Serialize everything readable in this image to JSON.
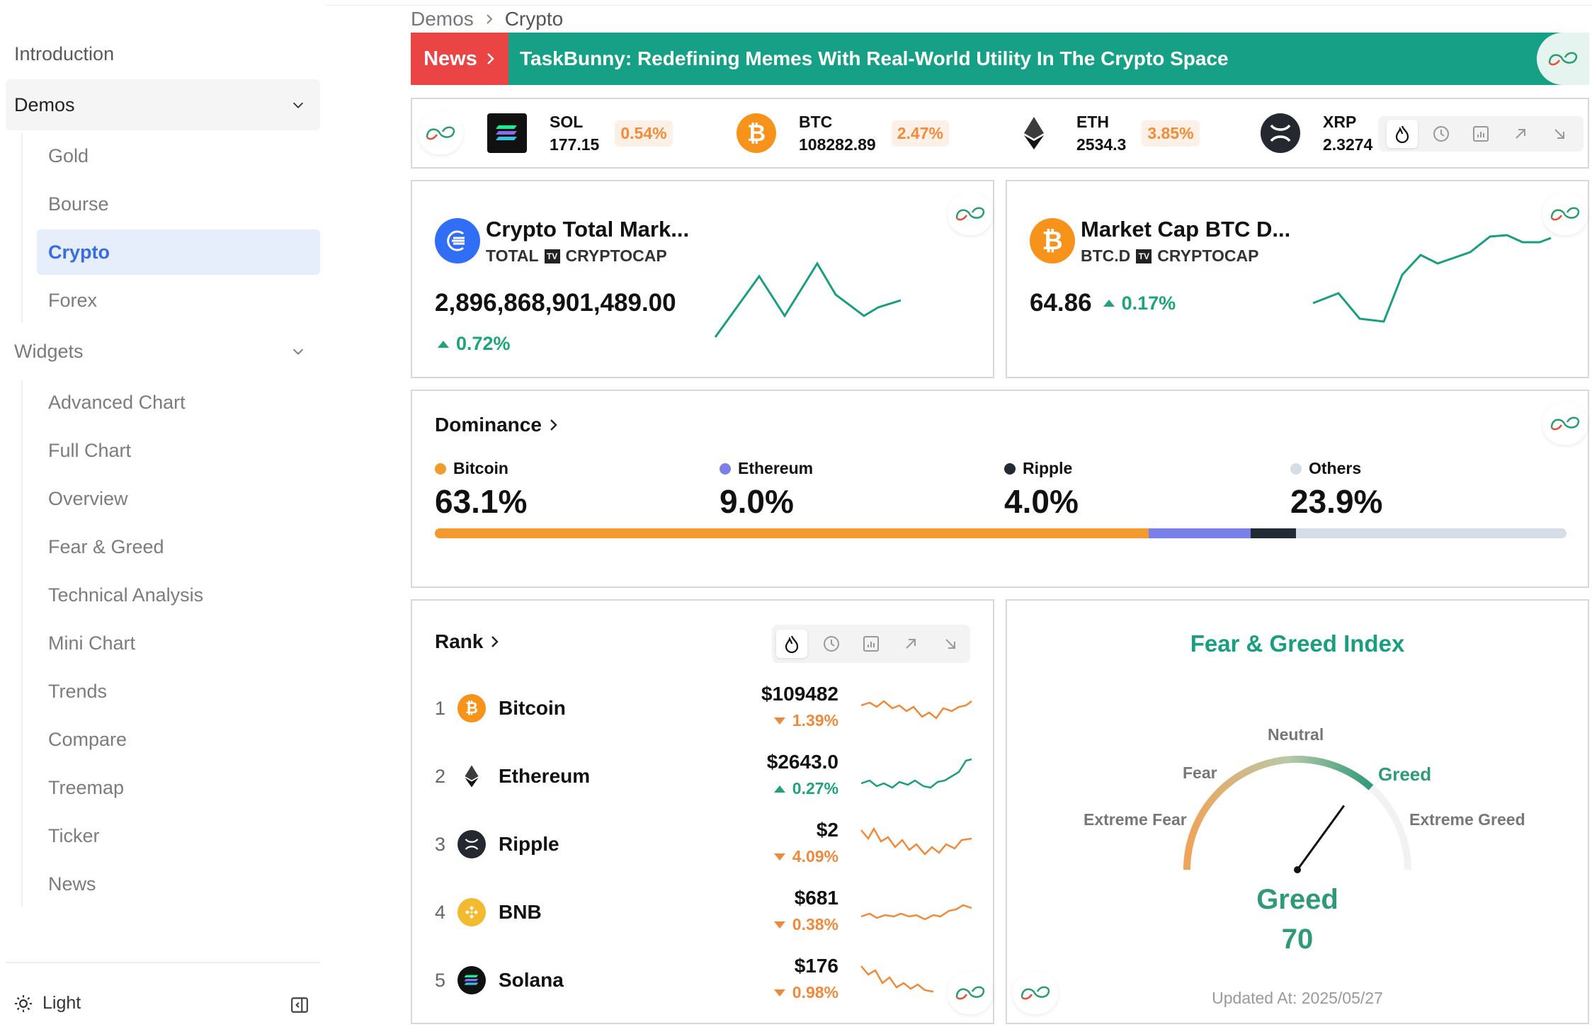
{
  "sidebar": {
    "intro": "Introduction",
    "demos": {
      "label": "Demos",
      "items": [
        "Gold",
        "Bourse",
        "Crypto",
        "Forex"
      ],
      "active": "Crypto"
    },
    "widgets": {
      "label": "Widgets",
      "items": [
        "Advanced Chart",
        "Full Chart",
        "Overview",
        "Fear & Greed",
        "Technical Analysis",
        "Mini Chart",
        "Trends",
        "Compare",
        "Treemap",
        "Ticker",
        "News"
      ]
    },
    "theme": "Light"
  },
  "breadcrumb": {
    "parent": "Demos",
    "current": "Crypto"
  },
  "news": {
    "tag": "News",
    "headline": "TaskBunny: Redefining Memes With Real-World Utility In The Crypto Space"
  },
  "ticker": [
    {
      "symbol": "SOL",
      "price": "177.15",
      "change": "0.54%"
    },
    {
      "symbol": "BTC",
      "price": "108282.89",
      "change": "2.47%"
    },
    {
      "symbol": "ETH",
      "price": "2534.3",
      "change": "3.85%"
    },
    {
      "symbol": "XRP",
      "price": "2.3274"
    }
  ],
  "market_total": {
    "title": "Crypto Total Mark...",
    "symbol": "TOTAL",
    "source": "CRYPTOCAP",
    "value": "2,896,868,901,489.00",
    "change": "0.72%"
  },
  "market_btcd": {
    "title": "Market Cap BTC D...",
    "symbol": "BTC.D",
    "source": "CRYPTOCAP",
    "value": "64.86",
    "change": "0.17%"
  },
  "dominance": {
    "title": "Dominance",
    "items": [
      {
        "name": "Bitcoin",
        "value": "63.1%",
        "share": 63.1,
        "color": "#f29a2e"
      },
      {
        "name": "Ethereum",
        "value": "9.0%",
        "share": 9.0,
        "color": "#7b7fe8"
      },
      {
        "name": "Ripple",
        "value": "4.0%",
        "share": 4.0,
        "color": "#222b33"
      },
      {
        "name": "Others",
        "value": "23.9%",
        "share": 23.9,
        "color": "#d5dde6"
      }
    ]
  },
  "rank": {
    "title": "Rank",
    "rows": [
      {
        "rank": "1",
        "name": "Bitcoin",
        "price": "$109482",
        "change": "1.39%",
        "dir": "down"
      },
      {
        "rank": "2",
        "name": "Ethereum",
        "price": "$2643.0",
        "change": "0.27%",
        "dir": "up"
      },
      {
        "rank": "3",
        "name": "Ripple",
        "price": "$2",
        "change": "4.09%",
        "dir": "down"
      },
      {
        "rank": "4",
        "name": "BNB",
        "price": "$681",
        "change": "0.38%",
        "dir": "down"
      },
      {
        "rank": "5",
        "name": "Solana",
        "price": "$176",
        "change": "0.98%",
        "dir": "down"
      }
    ]
  },
  "fear_greed": {
    "title": "Fear & Greed Index",
    "labels": {
      "neutral": "Neutral",
      "fear": "Fear",
      "greed": "Greed",
      "extreme_fear": "Extreme Fear",
      "extreme_greed": "Extreme Greed"
    },
    "state": "Greed",
    "value": "70",
    "updated": "Updated At: 2025/05/27"
  },
  "colors": {
    "accent": "#3a6be0",
    "news": "#16a085",
    "news_tag": "#ea4544",
    "up": "#1fa37c",
    "down": "#ef8a3a"
  }
}
